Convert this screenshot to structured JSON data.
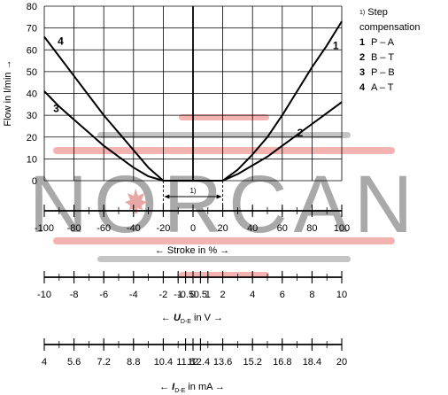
{
  "chart_data": {
    "type": "line",
    "ylabel": "Flow in l/min →",
    "ylim": [
      0,
      80
    ],
    "y_ticks": [
      "0",
      "10",
      "20",
      "30",
      "40",
      "50",
      "60",
      "70",
      "80"
    ],
    "x_axes": [
      {
        "label": "← Stroke in % →",
        "range": [
          -100,
          100
        ],
        "ticks": [
          -100,
          -80,
          -60,
          -40,
          -20,
          0,
          20,
          40,
          60,
          80,
          100
        ],
        "tick_labels": [
          "-100",
          "-80",
          "-60",
          "-40",
          "-20",
          "0",
          "20",
          "40",
          "60",
          "80",
          "100"
        ]
      },
      {
        "label": "← U",
        "label_sub": "D-E",
        "label_tail": " in V →",
        "range": [
          -10,
          10
        ],
        "ticks": [
          -10,
          -8,
          -6,
          -4,
          -2,
          -1,
          -0.5,
          0,
          0.5,
          1,
          2,
          4,
          6,
          8,
          10
        ],
        "tick_labels": [
          "-10",
          "-8",
          "-6",
          "-4",
          "-2",
          "-1",
          "-0.5",
          "0",
          "0.5",
          "1",
          "2",
          "4",
          "6",
          "8",
          "10"
        ]
      },
      {
        "label": "← I",
        "label_sub": "D-E",
        "label_tail": " in mA →",
        "range": [
          4,
          20
        ],
        "ticks": [
          4,
          5.6,
          7.2,
          8.8,
          10.4,
          11.6,
          12,
          12.4,
          13.6,
          15.2,
          16.8,
          18.4,
          20
        ],
        "tick_labels": [
          "4",
          "5.6",
          "7.2",
          "8.8",
          "10.4",
          "11.6",
          "12",
          "12.4",
          "13.6",
          "15.2",
          "16.8",
          "18.4",
          "20"
        ]
      }
    ],
    "series": [
      {
        "name": "1",
        "x": [
          20,
          30,
          40,
          50,
          60,
          70,
          80,
          90,
          100
        ],
        "values": [
          0,
          5,
          12,
          20,
          30,
          41,
          52,
          62,
          73
        ]
      },
      {
        "name": "2",
        "x": [
          20,
          30,
          40,
          50,
          60,
          70,
          80,
          90,
          100
        ],
        "values": [
          0,
          3,
          7,
          11,
          16,
          21,
          26,
          31,
          36
        ]
      },
      {
        "name": "3",
        "x": [
          -100,
          -90,
          -80,
          -70,
          -60,
          -50,
          -40,
          -30,
          -20
        ],
        "values": [
          41,
          34,
          28,
          22,
          16,
          11,
          6,
          2,
          0
        ]
      },
      {
        "name": "4",
        "x": [
          -100,
          -90,
          -80,
          -70,
          -60,
          -50,
          -40,
          -30,
          -20
        ],
        "values": [
          66,
          57,
          48,
          39,
          30,
          22,
          14,
          6,
          0
        ]
      }
    ],
    "dead_band": [
      -20,
      20
    ],
    "annotation": "1)",
    "legend": {
      "title_marker": "1)",
      "title": "Step compensation",
      "items": [
        {
          "num": "1",
          "text": "P – A"
        },
        {
          "num": "2",
          "text": "B – T"
        },
        {
          "num": "3",
          "text": "P – B"
        },
        {
          "num": "4",
          "text": "A – T"
        }
      ]
    }
  },
  "watermark": "NORCAN",
  "colors": {
    "line": "#000000",
    "grid": "#000000",
    "watermark_text": "#a9a9a9",
    "watermark_red": "#f3b3b0",
    "watermark_gray": "#c4c4c4"
  }
}
